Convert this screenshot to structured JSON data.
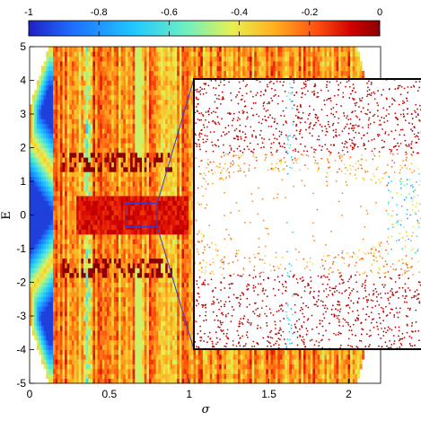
{
  "chart_data": {
    "type": "heatmap",
    "description_free": true,
    "x": {
      "label": "σ",
      "range": [
        0,
        2.2
      ],
      "ticks": [
        0,
        0.5,
        1,
        1.5,
        2
      ],
      "tick_labels": [
        "0",
        "0.5",
        "1",
        "1.5",
        "2"
      ]
    },
    "y": {
      "label": "E",
      "range": [
        -5,
        5
      ],
      "ticks": [
        -5,
        -4,
        -3,
        -2,
        -1,
        0,
        1,
        2,
        3,
        4,
        5
      ],
      "tick_labels": [
        "-5",
        "-4",
        "-3",
        "-2",
        "-1",
        "0",
        "1",
        "2",
        "3",
        "4",
        "5"
      ]
    },
    "colorbar": {
      "range": [
        -1,
        0
      ],
      "ticks": [
        -1,
        -0.8,
        -0.6,
        -0.4,
        -0.2,
        0
      ],
      "tick_labels": [
        "-1",
        "-0.8",
        "-0.6",
        "-0.4",
        "-0.2",
        "0"
      ],
      "colormap": [
        "#2020c0",
        "#1e6cff",
        "#20c8ff",
        "#70f0c0",
        "#e8f050",
        "#ffb020",
        "#ff5010",
        "#d00000",
        "#8a0000"
      ]
    },
    "zoom_box": {
      "x_range": [
        0.6,
        0.8
      ],
      "y_range": [
        -0.35,
        0.35
      ]
    },
    "inset": {
      "x_range": [
        0.6,
        0.8
      ],
      "y_range": [
        -0.35,
        0.35
      ]
    },
    "colors": {
      "zoom_box": "#3a3ad0",
      "inset_frame": "#000000"
    }
  }
}
